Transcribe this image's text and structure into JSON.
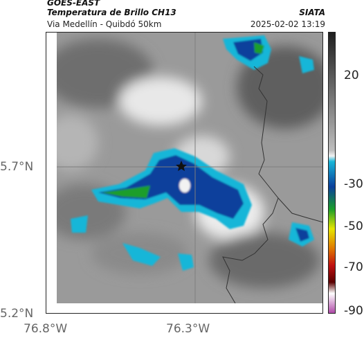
{
  "header": {
    "satellite": "GOES-EAST",
    "product": "Temperatura de Brillo CH13",
    "organization": "SIATA",
    "location": "Via Medellín - Quibdó 50km",
    "datetime": "2025-02-02 13:19"
  },
  "map": {
    "lat_ticks": [
      "5.7°N",
      "5.2°N"
    ],
    "lon_ticks": [
      "76.8°W",
      "76.3°W"
    ],
    "marker": "star-icon"
  },
  "colorbar": {
    "labels": [
      "20",
      "-30",
      "-50",
      "-70",
      "-90"
    ],
    "colors": [
      "#1f1f1f",
      "#bdbdbd",
      "#f2f2f2",
      "#18b6d8",
      "#0a3f9c",
      "#1a9e2a",
      "#e6e600",
      "#e07800",
      "#c01010",
      "#5a0000",
      "#ffffff",
      "#b04aa8"
    ]
  }
}
